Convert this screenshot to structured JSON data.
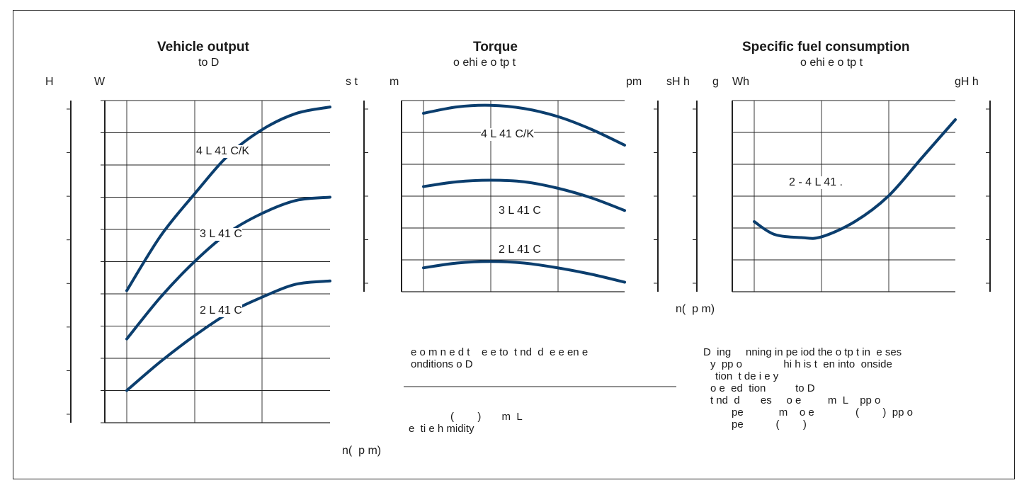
{
  "panels": {
    "output": {
      "title": "Vehicle output",
      "subtitle": "to D"
    },
    "torque": {
      "title": "Torque",
      "subtitle": "o ehi e o tp t"
    },
    "sfc": {
      "title": "Specific fuel consumption",
      "subtitle": "o ehi e o tp t"
    }
  },
  "axis_labels": {
    "output_left_outer": "H",
    "output_left_inner": "W",
    "torque_left_outer": "s t",
    "torque_left_inner": "m",
    "torque_right": "pm",
    "sfc_left_outer": "sH h",
    "sfc_left_mid": "g",
    "sfc_left_inner": "Wh",
    "sfc_right": "gH h",
    "n_rpm_torque": "n(  p m)",
    "n_rpm_output": "n(  p m)"
  },
  "notes": {
    "middle_line1": "e o m n e d t    e e to  t nd  d  e e en e",
    "middle_line2": "onditions o D",
    "middle_line3": "(        )       m  L",
    "middle_line4": "e  ti e h midity",
    "right_line1": "D  ing     nning in pe iod the o tp t in  e ses",
    "right_line2": "y  pp o              hi h is t  en into  onside",
    "right_line3": "tion  t de i e y",
    "right_line4": "o e  ed  tion          to D",
    "right_line5": "t nd  d       es     o e         m  L    pp o",
    "right_line6": "pe            m    o e              (        )  pp o",
    "right_line7": "pe           (        )"
  },
  "chart_data": [
    {
      "type": "line",
      "title": "Vehicle output",
      "subtitle": "to D",
      "x_grid_divisions": 3,
      "y_grid_divisions": 10,
      "series": [
        {
          "name": "4 L 41 C/K",
          "x": [
            0,
            0.5,
            1,
            1.5,
            2,
            2.5,
            3
          ],
          "y": [
            4.1,
            5.8,
            7.1,
            8.3,
            9.1,
            9.6,
            9.8
          ]
        },
        {
          "name": "3 L 41 C",
          "x": [
            0,
            0.5,
            1,
            1.5,
            2,
            2.5,
            3
          ],
          "y": [
            2.6,
            3.9,
            5.0,
            5.9,
            6.5,
            6.9,
            7.0
          ]
        },
        {
          "name": "2 L 41 C",
          "x": [
            0,
            0.5,
            1,
            1.5,
            2,
            2.5,
            3
          ],
          "y": [
            1.0,
            1.9,
            2.7,
            3.4,
            3.9,
            4.3,
            4.4
          ]
        }
      ],
      "color": "#0b3e6e"
    },
    {
      "type": "line",
      "title": "Torque",
      "subtitle": "o ehi e o tp t",
      "x_grid_divisions": 3,
      "y_grid_divisions": 6,
      "series": [
        {
          "name": "4 L 41 C/K",
          "x": [
            0,
            0.5,
            1,
            1.5,
            2,
            2.5,
            3
          ],
          "y": [
            5.6,
            5.8,
            5.85,
            5.75,
            5.5,
            5.1,
            4.6
          ]
        },
        {
          "name": "3 L 41 C",
          "x": [
            0,
            0.5,
            1,
            1.5,
            2,
            2.5,
            3
          ],
          "y": [
            3.3,
            3.45,
            3.5,
            3.45,
            3.25,
            2.95,
            2.55
          ]
        },
        {
          "name": "2 L 41 C",
          "x": [
            0,
            0.5,
            1,
            1.5,
            2,
            2.5,
            3
          ],
          "y": [
            0.75,
            0.9,
            0.95,
            0.9,
            0.75,
            0.55,
            0.3
          ]
        }
      ],
      "color": "#0b3e6e"
    },
    {
      "type": "line",
      "title": "Specific fuel consumption",
      "subtitle": "o ehi e o tp t",
      "x_grid_divisions": 3,
      "y_grid_divisions": 6,
      "series": [
        {
          "name": "2 - 4 L 41 .",
          "x": [
            0,
            0.3,
            0.7,
            1,
            1.5,
            2,
            2.5,
            3
          ],
          "y": [
            2.2,
            1.8,
            1.7,
            1.72,
            2.2,
            3.0,
            4.2,
            5.4
          ]
        }
      ],
      "color": "#0b3e6e"
    }
  ]
}
